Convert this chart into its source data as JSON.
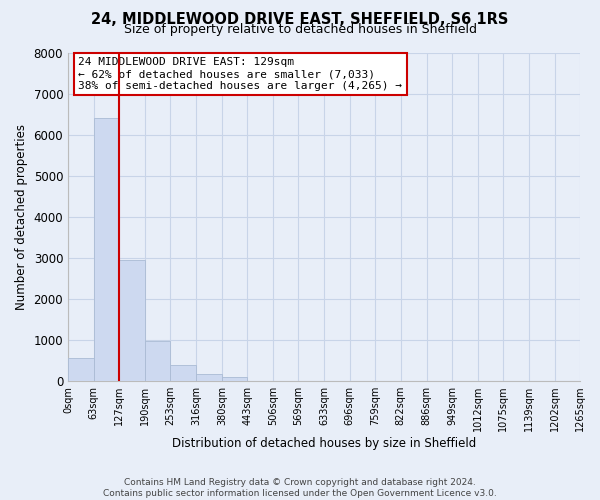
{
  "title": "24, MIDDLEWOOD DRIVE EAST, SHEFFIELD, S6 1RS",
  "subtitle": "Size of property relative to detached houses in Sheffield",
  "bar_heights": [
    550,
    6400,
    2950,
    980,
    380,
    175,
    90,
    0,
    0,
    0,
    0,
    0,
    0,
    0,
    0,
    0,
    0,
    0,
    0,
    0
  ],
  "bin_edges": [
    0,
    63,
    127,
    190,
    253,
    316,
    380,
    443,
    506,
    569,
    633,
    696,
    759,
    822,
    886,
    949,
    1012,
    1075,
    1139,
    1202,
    1265
  ],
  "bar_color": "#cdd9f0",
  "bar_edge_color": "#aabbd4",
  "vline_x": 127,
  "vline_color": "#cc0000",
  "annotation_text": "24 MIDDLEWOOD DRIVE EAST: 129sqm\n← 62% of detached houses are smaller (7,033)\n38% of semi-detached houses are larger (4,265) →",
  "annotation_box_facecolor": "#ffffff",
  "annotation_box_edgecolor": "#cc0000",
  "xlabel": "Distribution of detached houses by size in Sheffield",
  "ylabel": "Number of detached properties",
  "ylim": [
    0,
    8000
  ],
  "yticks": [
    0,
    1000,
    2000,
    3000,
    4000,
    5000,
    6000,
    7000,
    8000
  ],
  "xtick_labels": [
    "0sqm",
    "63sqm",
    "127sqm",
    "190sqm",
    "253sqm",
    "316sqm",
    "380sqm",
    "443sqm",
    "506sqm",
    "569sqm",
    "633sqm",
    "696sqm",
    "759sqm",
    "822sqm",
    "886sqm",
    "949sqm",
    "1012sqm",
    "1075sqm",
    "1139sqm",
    "1202sqm",
    "1265sqm"
  ],
  "grid_color": "#c8d4e8",
  "bg_color": "#e8eef8",
  "footer_line1": "Contains HM Land Registry data © Crown copyright and database right 2024.",
  "footer_line2": "Contains public sector information licensed under the Open Government Licence v3.0."
}
